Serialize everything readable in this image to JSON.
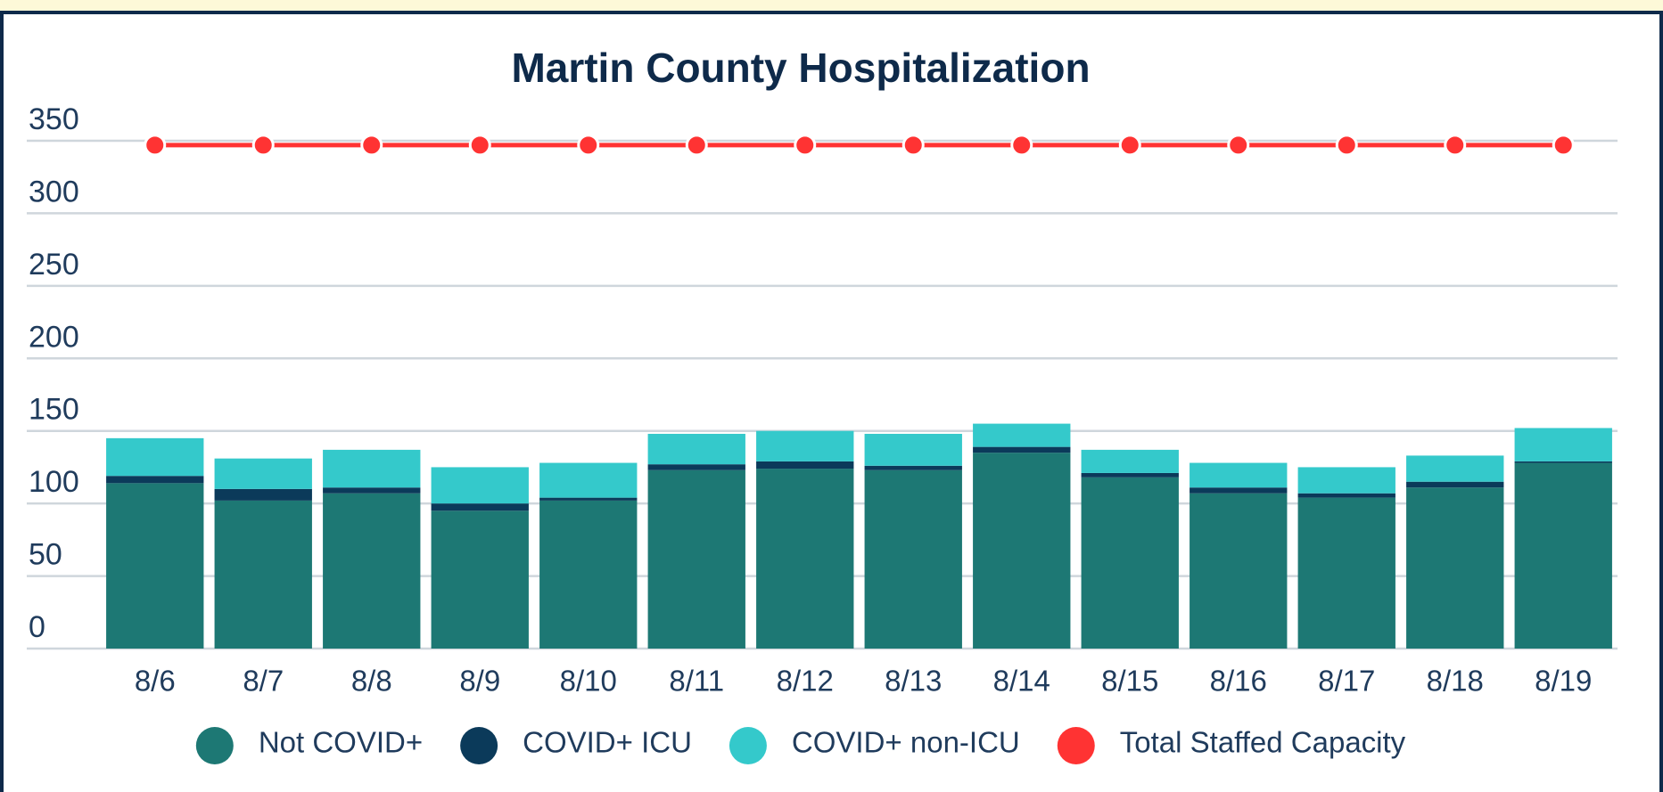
{
  "chart_data": {
    "type": "bar",
    "stacked": true,
    "title": "Martin County Hospitalization",
    "categories": [
      "8/6",
      "8/7",
      "8/8",
      "8/9",
      "8/10",
      "8/11",
      "8/12",
      "8/13",
      "8/14",
      "8/15",
      "8/16",
      "8/17",
      "8/18",
      "8/19"
    ],
    "series": [
      {
        "name": "Not COVID+",
        "color": "#1d7874",
        "values": [
          114,
          102,
          107,
          95,
          102,
          123,
          124,
          123,
          135,
          118,
          107,
          104,
          111,
          128
        ]
      },
      {
        "name": "COVID+ ICU",
        "color": "#0b3a5a",
        "values": [
          5,
          8,
          4,
          5,
          2,
          4,
          5,
          3,
          4,
          3,
          4,
          3,
          4,
          1
        ]
      },
      {
        "name": "COVID+ non-ICU",
        "color": "#34c9cb",
        "values": [
          26,
          21,
          26,
          25,
          24,
          21,
          21,
          22,
          16,
          16,
          17,
          18,
          18,
          23
        ]
      },
      {
        "name": "Total Staffed Capacity",
        "color": "#ff3333",
        "type": "line",
        "values": [
          347,
          347,
          347,
          347,
          347,
          347,
          347,
          347,
          347,
          347,
          347,
          347,
          347,
          347
        ]
      }
    ],
    "ylim": [
      0,
      350
    ],
    "yticks": [
      0,
      50,
      100,
      150,
      200,
      250,
      300,
      350
    ],
    "grid": true,
    "legend": "bottom"
  }
}
